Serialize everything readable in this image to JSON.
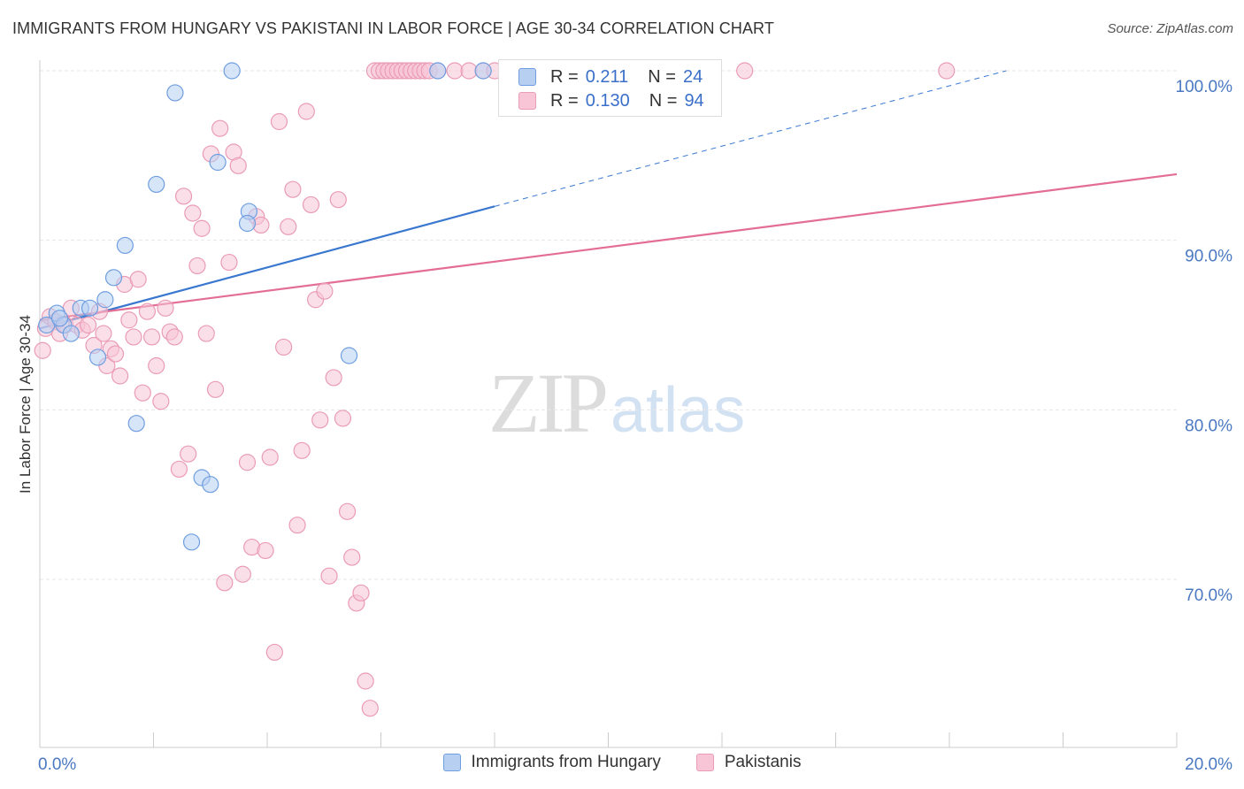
{
  "title": "IMMIGRANTS FROM HUNGARY VS PAKISTANI IN LABOR FORCE | AGE 30-34 CORRELATION CHART",
  "source": "Source: ZipAtlas.com",
  "watermark": {
    "zip": "ZIP",
    "atlas": "atlas"
  },
  "legend": {
    "hungary": {
      "r_label": "R =",
      "r_value": "0.211",
      "n_label": "N =",
      "n_value": "24"
    },
    "pakistani": {
      "r_label": "R =",
      "r_value": "0.130",
      "n_label": "N =",
      "n_value": "94"
    }
  },
  "bottom_legend": {
    "hungary": "Immigrants from Hungary",
    "pakistani": "Pakistanis"
  },
  "colors": {
    "hungary_fill": "#b7d0f2",
    "hungary_stroke": "#6f9ee0",
    "hungary_line": "#3a78d0",
    "pakistani_fill": "#f8c5d6",
    "pakistani_stroke": "#ea9bb6",
    "pakistani_line": "#e36d95",
    "grid": "#e6e6e6",
    "axis_label": "#4a78c2"
  },
  "chart_data": {
    "type": "scatter",
    "title": "IMMIGRANTS FROM HUNGARY VS PAKISTANI IN LABOR FORCE | AGE 30-34 CORRELATION CHART",
    "xlabel": "",
    "ylabel": "In Labor Force | Age 30-34",
    "xlim": [
      0,
      20
    ],
    "ylim": [
      60.5,
      100.5
    ],
    "x_tick_labels": [
      "0.0%",
      "20.0%"
    ],
    "y_ticks": [
      70,
      80,
      90,
      100
    ],
    "y_tick_labels": [
      "70.0%",
      "80.0%",
      "90.0%",
      "100.0%"
    ],
    "grid": true,
    "legend_position": "top-center",
    "series": [
      {
        "name": "Immigrants from Hungary",
        "color": "#6f9ee0",
        "x": [
          0.12,
          0.3,
          0.42,
          0.55,
          0.72,
          0.88,
          1.02,
          1.15,
          1.3,
          1.5,
          1.7,
          2.05,
          2.38,
          2.67,
          2.85,
          3.0,
          3.13,
          3.68,
          3.65,
          3.38,
          5.44,
          7.0,
          7.8,
          0.35
        ],
        "y": [
          85.0,
          85.7,
          85.0,
          84.5,
          86.0,
          86.0,
          83.1,
          86.5,
          87.8,
          89.7,
          79.2,
          93.3,
          98.7,
          72.2,
          76.0,
          75.6,
          94.6,
          91.7,
          91.0,
          100.0,
          83.2,
          100.0,
          100.0,
          85.4
        ]
      },
      {
        "name": "Pakistanis",
        "color": "#ea9bb6",
        "x": [
          0.05,
          0.1,
          0.18,
          0.28,
          0.35,
          0.45,
          0.55,
          0.65,
          0.75,
          0.85,
          0.95,
          1.05,
          1.12,
          1.18,
          1.25,
          1.33,
          1.41,
          1.49,
          1.57,
          1.65,
          1.73,
          1.81,
          1.89,
          1.97,
          2.05,
          2.13,
          2.21,
          2.29,
          2.37,
          2.45,
          2.53,
          2.61,
          2.69,
          2.77,
          2.85,
          2.93,
          3.01,
          3.09,
          3.17,
          3.25,
          3.33,
          3.41,
          3.49,
          3.57,
          3.65,
          3.73,
          3.81,
          3.89,
          3.97,
          4.05,
          4.13,
          4.21,
          4.29,
          4.37,
          4.45,
          4.53,
          4.61,
          4.69,
          4.77,
          4.85,
          4.93,
          5.01,
          5.09,
          5.17,
          5.25,
          5.33,
          5.41,
          5.49,
          5.57,
          5.65,
          5.73,
          5.81,
          5.89,
          5.97,
          6.05,
          6.13,
          6.21,
          6.29,
          6.37,
          6.45,
          6.53,
          6.61,
          6.69,
          6.77,
          6.85,
          7.0,
          7.3,
          7.55,
          7.8,
          8.0,
          9.35,
          9.4,
          12.4,
          15.95
        ],
        "y": [
          83.5,
          84.8,
          85.5,
          85.2,
          84.5,
          85.0,
          86.0,
          85.0,
          84.7,
          85.0,
          83.8,
          85.8,
          84.5,
          82.6,
          83.6,
          83.3,
          82.0,
          87.4,
          85.3,
          84.3,
          87.7,
          81.0,
          85.8,
          84.3,
          82.6,
          80.5,
          86.0,
          84.6,
          84.3,
          76.5,
          92.6,
          77.4,
          91.6,
          88.5,
          90.7,
          84.5,
          95.1,
          81.2,
          96.6,
          69.8,
          88.7,
          95.2,
          94.4,
          70.3,
          76.9,
          71.9,
          91.4,
          90.9,
          71.7,
          77.2,
          65.7,
          97.0,
          83.7,
          90.8,
          93.0,
          73.2,
          77.6,
          97.6,
          92.1,
          86.5,
          79.4,
          87.0,
          70.2,
          81.9,
          92.4,
          79.5,
          74.0,
          71.3,
          68.6,
          69.2,
          64.0,
          62.4,
          100.0,
          100.0,
          100.0,
          100.0,
          100.0,
          100.0,
          100.0,
          100.0,
          100.0,
          100.0,
          100.0,
          100.0,
          100.0,
          100.0,
          100.0,
          100.0,
          100.0,
          100.0,
          100.0,
          100.0,
          100.0,
          100.0
        ],
        "y_note_dedupe": ""
      }
    ],
    "trend_lines": [
      {
        "series": "Immigrants from Hungary",
        "x": [
          0,
          8.0
        ],
        "y": [
          84.8,
          92.0
        ],
        "dashed_extension_to_x": 17.0,
        "dashed_extension_y": 100.0
      },
      {
        "series": "Pakistanis",
        "x": [
          0,
          20
        ],
        "y": [
          85.3,
          93.9
        ]
      }
    ]
  }
}
